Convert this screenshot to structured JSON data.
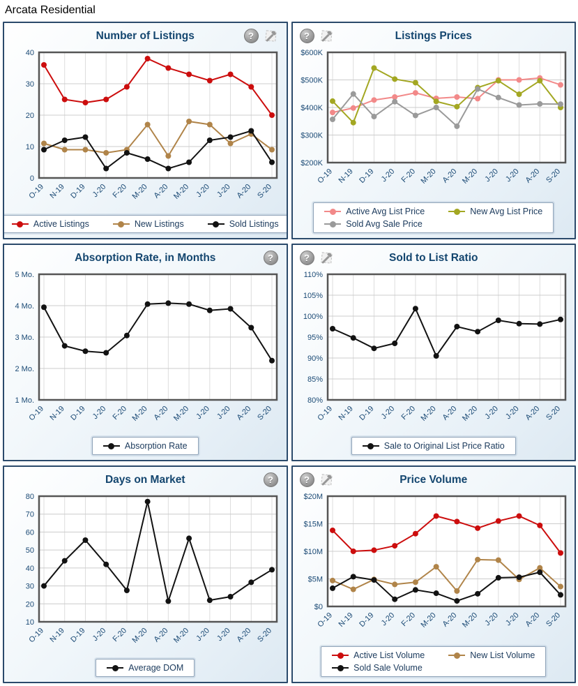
{
  "page": {
    "title": "Arcata Residential"
  },
  "icons": {
    "help_glyph": "?"
  },
  "chart_data": [
    {
      "type": "line",
      "title": "Number of Listings",
      "categories": [
        "O-19",
        "N-19",
        "D-19",
        "J-20",
        "F-20",
        "M-20",
        "A-20",
        "M-20",
        "J-20",
        "J-20",
        "A-20",
        "S-20"
      ],
      "ylim": [
        0,
        40
      ],
      "ytick_values": [
        0,
        10,
        20,
        30,
        40
      ],
      "ytick_labels": [
        "0",
        "10",
        "20",
        "30",
        "40"
      ],
      "grid": true,
      "legend_position": "bottom",
      "series": [
        {
          "name": "Active Listings",
          "color": "#cc0d0d",
          "values": [
            36,
            25,
            24,
            25,
            29,
            38,
            35,
            33,
            31,
            33,
            29,
            20
          ]
        },
        {
          "name": "New Listings",
          "color": "#b08449",
          "values": [
            11,
            9,
            9,
            8,
            9,
            17,
            7,
            18,
            17,
            11,
            14,
            9
          ]
        },
        {
          "name": "Sold Listings",
          "color": "#121212",
          "values": [
            9,
            12,
            13,
            3,
            8,
            6,
            3,
            5,
            12,
            13,
            15,
            5
          ]
        }
      ]
    },
    {
      "type": "line",
      "title": "Listings Prices",
      "categories": [
        "O-19",
        "N-19",
        "D-19",
        "J-20",
        "F-20",
        "M-20",
        "A-20",
        "M-20",
        "J-20",
        "J-20",
        "A-20",
        "S-20"
      ],
      "ylim": [
        200,
        600
      ],
      "ytick_values": [
        200,
        300,
        400,
        500,
        600
      ],
      "ytick_labels": [
        "$200K",
        "$300K",
        "$400K",
        "$500K",
        "$600K"
      ],
      "grid": true,
      "legend_position": "bottom",
      "series": [
        {
          "name": "Active Avg List Price",
          "color": "#f28989",
          "values": [
            382,
            398,
            427,
            438,
            453,
            433,
            438,
            432,
            500,
            500,
            507,
            482
          ]
        },
        {
          "name": "New Avg List Price",
          "color": "#a3a722",
          "values": [
            423,
            345,
            543,
            503,
            490,
            422,
            403,
            472,
            497,
            448,
            497,
            400
          ]
        },
        {
          "name": "Sold Avg Sale Price",
          "color": "#9a9a9a",
          "values": [
            357,
            449,
            367,
            421,
            371,
            400,
            332,
            467,
            436,
            409,
            413,
            412
          ]
        }
      ]
    },
    {
      "type": "line",
      "title": "Absorption Rate, in Months",
      "categories": [
        "O-19",
        "N-19",
        "D-19",
        "J-20",
        "F-20",
        "M-20",
        "A-20",
        "M-20",
        "J-20",
        "J-20",
        "A-20",
        "S-20"
      ],
      "ylim": [
        1,
        5
      ],
      "ytick_values": [
        1,
        2,
        3,
        4,
        5
      ],
      "ytick_labels": [
        "1 Mo.",
        "2 Mo.",
        "3 Mo.",
        "4 Mo.",
        "5 Mo."
      ],
      "grid": true,
      "legend_position": "bottom",
      "series": [
        {
          "name": "Absorption Rate",
          "color": "#121212",
          "values": [
            3.95,
            2.72,
            2.55,
            2.5,
            3.05,
            4.05,
            4.08,
            4.05,
            3.85,
            3.9,
            3.3,
            2.25
          ]
        }
      ]
    },
    {
      "type": "line",
      "title": "Sold to List Ratio",
      "categories": [
        "O-19",
        "N-19",
        "D-19",
        "J-20",
        "F-20",
        "M-20",
        "A-20",
        "M-20",
        "J-20",
        "J-20",
        "A-20",
        "S-20"
      ],
      "ylim": [
        80,
        110
      ],
      "ytick_values": [
        80,
        85,
        90,
        95,
        100,
        105,
        110
      ],
      "ytick_labels": [
        "80%",
        "85%",
        "90%",
        "95%",
        "100%",
        "105%",
        "110%"
      ],
      "grid": true,
      "legend_position": "bottom",
      "series": [
        {
          "name": "Sale to Original List Price Ratio",
          "color": "#121212",
          "values": [
            97,
            94.8,
            92.3,
            93.5,
            101.8,
            90.5,
            97.5,
            96.3,
            99,
            98.2,
            98.1,
            99.2
          ]
        }
      ]
    },
    {
      "type": "line",
      "title": "Days on Market",
      "categories": [
        "O-19",
        "N-19",
        "D-19",
        "J-20",
        "F-20",
        "M-20",
        "A-20",
        "M-20",
        "J-20",
        "J-20",
        "A-20",
        "S-20"
      ],
      "ylim": [
        10,
        80
      ],
      "ytick_values": [
        10,
        20,
        30,
        40,
        50,
        60,
        70,
        80
      ],
      "ytick_labels": [
        "10",
        "20",
        "30",
        "40",
        "50",
        "60",
        "70",
        "80"
      ],
      "grid": true,
      "legend_position": "bottom",
      "series": [
        {
          "name": "Average DOM",
          "color": "#121212",
          "values": [
            30,
            44,
            55.5,
            42,
            27.5,
            77,
            21.5,
            56.5,
            22,
            24,
            32,
            39
          ]
        }
      ]
    },
    {
      "type": "line",
      "title": "Price Volume",
      "categories": [
        "O-19",
        "N-19",
        "D-19",
        "J-20",
        "F-20",
        "M-20",
        "A-20",
        "M-20",
        "J-20",
        "J-20",
        "A-20",
        "S-20"
      ],
      "ylim": [
        0,
        20
      ],
      "ytick_values": [
        0,
        5,
        10,
        15,
        20
      ],
      "ytick_labels": [
        "$0",
        "$5M",
        "$10M",
        "$15M",
        "$20M"
      ],
      "grid": true,
      "legend_position": "bottom",
      "series": [
        {
          "name": "Active List Volume",
          "color": "#cc0d0d",
          "values": [
            13.8,
            10,
            10.2,
            11,
            13.2,
            16.4,
            15.4,
            14.2,
            15.5,
            16.4,
            14.7,
            9.7
          ]
        },
        {
          "name": "New List Volume",
          "color": "#b08449",
          "values": [
            4.7,
            3.1,
            4.9,
            4.0,
            4.4,
            7.2,
            2.8,
            8.5,
            8.4,
            4.9,
            7.0,
            3.6
          ]
        },
        {
          "name": "Sold Sale Volume",
          "color": "#121212",
          "values": [
            3.3,
            5.4,
            4.8,
            1.3,
            3.0,
            2.4,
            1.0,
            2.3,
            5.2,
            5.3,
            6.2,
            2.1
          ]
        }
      ]
    }
  ]
}
